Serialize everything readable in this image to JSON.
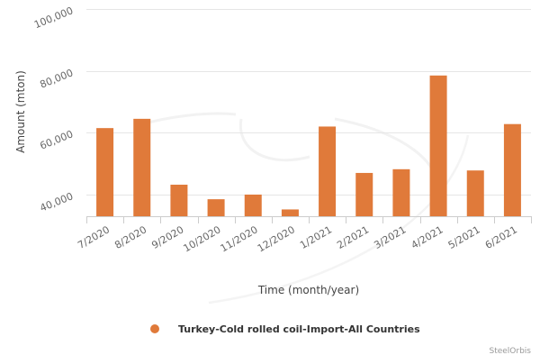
{
  "chart_data": {
    "type": "bar",
    "categories": [
      "7/2020",
      "8/2020",
      "9/2020",
      "10/2020",
      "11/2020",
      "12/2020",
      "1/2021",
      "2/2021",
      "3/2021",
      "4/2021",
      "5/2021",
      "6/2021"
    ],
    "series": [
      {
        "name": "Turkey-Cold rolled coil-Import-All Countries",
        "color": "#e07a3a",
        "values": [
          61500,
          64500,
          43200,
          38500,
          40000,
          35200,
          62000,
          47000,
          48200,
          78500,
          47800,
          62800
        ]
      }
    ],
    "title": "",
    "xlabel": "Time (month/year)",
    "ylabel": "Amount (mton)",
    "ylim": [
      33000,
      100000
    ],
    "yticks": [
      40000,
      60000,
      80000,
      100000
    ],
    "ytick_labels": [
      "40,000",
      "60,000",
      "80,000",
      "100,000"
    ],
    "grid": true,
    "legend_position": "bottom-center"
  },
  "credits": "SteelOrbis"
}
